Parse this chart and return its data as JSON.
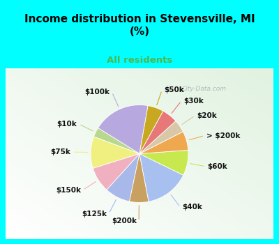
{
  "title": "Income distribution in Stevensville, MI\n(%)",
  "subtitle": "All residents",
  "title_color": "#000000",
  "subtitle_color": "#4db84d",
  "background_cyan": "#00ffff",
  "watermark": "City-Data.com",
  "labels": [
    "$100k",
    "$10k",
    "$75k",
    "$150k",
    "$125k",
    "$200k",
    "$40k",
    "$60k",
    "> $200k",
    "$20k",
    "$30k",
    "$50k"
  ],
  "values": [
    18,
    3,
    10,
    8,
    8,
    6,
    14,
    8,
    6,
    4,
    5,
    5
  ],
  "colors": [
    "#b8a8e0",
    "#b8d890",
    "#f0f080",
    "#f0b0c0",
    "#a8b8e8",
    "#c8a060",
    "#a8c0f0",
    "#c8e850",
    "#f0a850",
    "#d8c8a8",
    "#e87878",
    "#c8a820"
  ],
  "label_fontsize": 7.5,
  "startangle": 80,
  "figsize": [
    4.0,
    3.5
  ],
  "dpi": 100
}
